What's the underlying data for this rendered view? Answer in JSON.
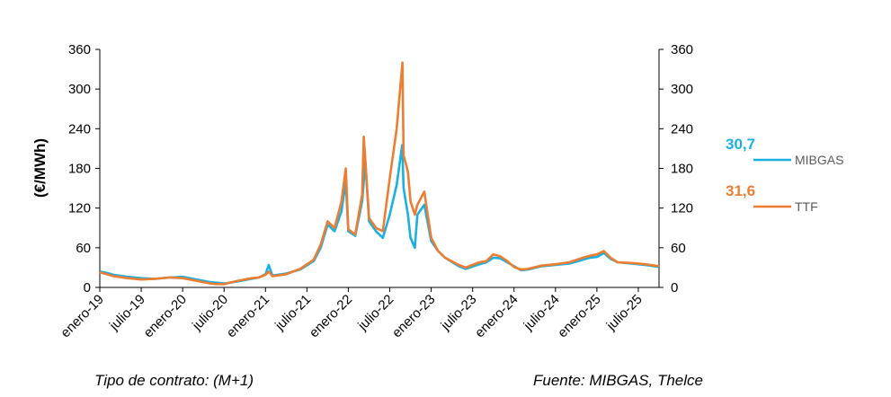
{
  "chart_data": {
    "type": "line",
    "title": "",
    "ylabel": "(€/MWh)",
    "ylim": [
      0,
      360
    ],
    "yticks": [
      0,
      60,
      120,
      180,
      240,
      300,
      360
    ],
    "secondary_ylim": [
      0,
      360
    ],
    "xlim": [
      "2019-01",
      "2025-10"
    ],
    "xticks": [
      "enero-19",
      "julio-19",
      "enero-20",
      "julio-20",
      "enero-21",
      "julio-21",
      "enero-22",
      "julio-22",
      "enero-23",
      "julio-23",
      "enero-24",
      "julio-24",
      "enero-25",
      "julio-25"
    ],
    "grid": false,
    "legend": "right",
    "series": [
      {
        "name": "MIBGAS",
        "color": "#1ab0e0",
        "last_value_label": "30,7",
        "points": [
          [
            "2019-01",
            24
          ],
          [
            "2019-02",
            22
          ],
          [
            "2019-03",
            19
          ],
          [
            "2019-05",
            16
          ],
          [
            "2019-07",
            14
          ],
          [
            "2019-09",
            13
          ],
          [
            "2019-11",
            15
          ],
          [
            "2020-01",
            16
          ],
          [
            "2020-03",
            12
          ],
          [
            "2020-05",
            8
          ],
          [
            "2020-06",
            7
          ],
          [
            "2020-07",
            6
          ],
          [
            "2020-09",
            9
          ],
          [
            "2020-11",
            13
          ],
          [
            "2020-12",
            15
          ],
          [
            "2021-01",
            20
          ],
          [
            "2021-01-15",
            34
          ],
          [
            "2021-02",
            18
          ],
          [
            "2021-04",
            21
          ],
          [
            "2021-06",
            27
          ],
          [
            "2021-08",
            40
          ],
          [
            "2021-09",
            60
          ],
          [
            "2021-10",
            95
          ],
          [
            "2021-11",
            85
          ],
          [
            "2021-12",
            115
          ],
          [
            "2021-12-20",
            160
          ],
          [
            "2022-01",
            85
          ],
          [
            "2022-02",
            78
          ],
          [
            "2022-03",
            130
          ],
          [
            "2022-03-15",
            190
          ],
          [
            "2022-04",
            100
          ],
          [
            "2022-05",
            85
          ],
          [
            "2022-06",
            75
          ],
          [
            "2022-07",
            110
          ],
          [
            "2022-08",
            155
          ],
          [
            "2022-08-25",
            215
          ],
          [
            "2022-09",
            150
          ],
          [
            "2022-09-20",
            110
          ],
          [
            "2022-10",
            75
          ],
          [
            "2022-10-20",
            60
          ],
          [
            "2022-11",
            110
          ],
          [
            "2022-12",
            125
          ],
          [
            "2023-01",
            70
          ],
          [
            "2023-02",
            55
          ],
          [
            "2023-03",
            45
          ],
          [
            "2023-05",
            32
          ],
          [
            "2023-06",
            28
          ],
          [
            "2023-08",
            35
          ],
          [
            "2023-09",
            38
          ],
          [
            "2023-10",
            45
          ],
          [
            "2023-11",
            44
          ],
          [
            "2023-12",
            38
          ],
          [
            "2024-01",
            32
          ],
          [
            "2024-02",
            26
          ],
          [
            "2024-03",
            27
          ],
          [
            "2024-05",
            32
          ],
          [
            "2024-07",
            34
          ],
          [
            "2024-09",
            36
          ],
          [
            "2024-11",
            42
          ],
          [
            "2024-12",
            45
          ],
          [
            "2025-01",
            46
          ],
          [
            "2025-02",
            52
          ],
          [
            "2025-03",
            43
          ],
          [
            "2025-04",
            38
          ],
          [
            "2025-06",
            36
          ],
          [
            "2025-08",
            34
          ],
          [
            "2025-10",
            31
          ]
        ]
      },
      {
        "name": "TTF",
        "color": "#ed7d31",
        "last_value_label": "31,6",
        "points": [
          [
            "2019-01",
            23
          ],
          [
            "2019-02",
            20
          ],
          [
            "2019-03",
            17
          ],
          [
            "2019-05",
            14
          ],
          [
            "2019-07",
            12
          ],
          [
            "2019-09",
            13
          ],
          [
            "2019-11",
            15
          ],
          [
            "2020-01",
            14
          ],
          [
            "2020-03",
            10
          ],
          [
            "2020-05",
            6
          ],
          [
            "2020-06",
            5
          ],
          [
            "2020-07",
            5
          ],
          [
            "2020-09",
            10
          ],
          [
            "2020-11",
            14
          ],
          [
            "2020-12",
            15
          ],
          [
            "2021-01",
            19
          ],
          [
            "2021-01-15",
            24
          ],
          [
            "2021-02",
            17
          ],
          [
            "2021-04",
            20
          ],
          [
            "2021-06",
            28
          ],
          [
            "2021-08",
            42
          ],
          [
            "2021-09",
            65
          ],
          [
            "2021-10",
            100
          ],
          [
            "2021-11",
            90
          ],
          [
            "2021-12",
            130
          ],
          [
            "2021-12-20",
            180
          ],
          [
            "2022-01",
            88
          ],
          [
            "2022-02",
            80
          ],
          [
            "2022-03",
            140
          ],
          [
            "2022-03-08",
            228
          ],
          [
            "2022-04",
            105
          ],
          [
            "2022-05",
            90
          ],
          [
            "2022-06",
            85
          ],
          [
            "2022-07",
            165
          ],
          [
            "2022-08",
            240
          ],
          [
            "2022-08-26",
            340
          ],
          [
            "2022-09",
            200
          ],
          [
            "2022-09-20",
            175
          ],
          [
            "2022-10",
            130
          ],
          [
            "2022-10-20",
            110
          ],
          [
            "2022-11",
            125
          ],
          [
            "2022-12",
            145
          ],
          [
            "2023-01",
            75
          ],
          [
            "2023-02",
            55
          ],
          [
            "2023-03",
            45
          ],
          [
            "2023-05",
            34
          ],
          [
            "2023-06",
            30
          ],
          [
            "2023-08",
            38
          ],
          [
            "2023-09",
            40
          ],
          [
            "2023-10",
            50
          ],
          [
            "2023-11",
            47
          ],
          [
            "2023-12",
            40
          ],
          [
            "2024-01",
            31
          ],
          [
            "2024-02",
            27
          ],
          [
            "2024-03",
            28
          ],
          [
            "2024-05",
            33
          ],
          [
            "2024-07",
            35
          ],
          [
            "2024-09",
            38
          ],
          [
            "2024-11",
            45
          ],
          [
            "2024-12",
            48
          ],
          [
            "2025-01",
            50
          ],
          [
            "2025-02",
            55
          ],
          [
            "2025-03",
            45
          ],
          [
            "2025-04",
            38
          ],
          [
            "2025-06",
            37
          ],
          [
            "2025-08",
            35
          ],
          [
            "2025-10",
            32
          ]
        ]
      }
    ]
  },
  "footer": {
    "contract_note": "Tipo de contrato: (M+1)",
    "source_note": "Fuente: MIBGAS, Thelce"
  }
}
